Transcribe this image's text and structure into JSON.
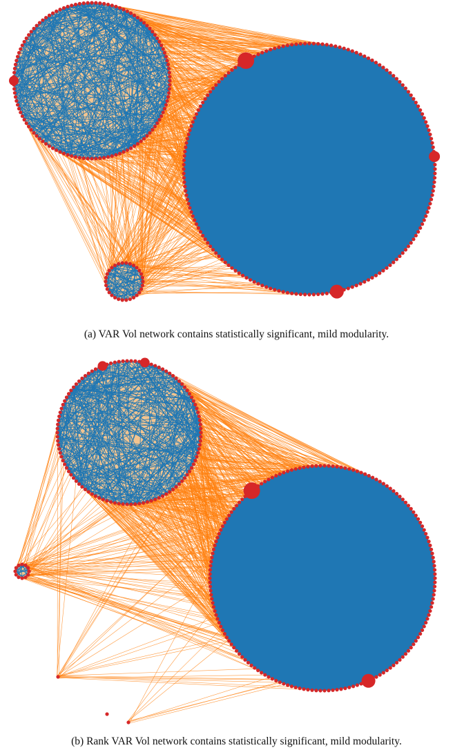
{
  "figure": {
    "panels": [
      {
        "caption": "(a) VAR Vol network contains statistically significant, mild modularity."
      },
      {
        "caption": "(b) Rank VAR Vol network contains statistically significant, mild modularity."
      }
    ]
  }
}
